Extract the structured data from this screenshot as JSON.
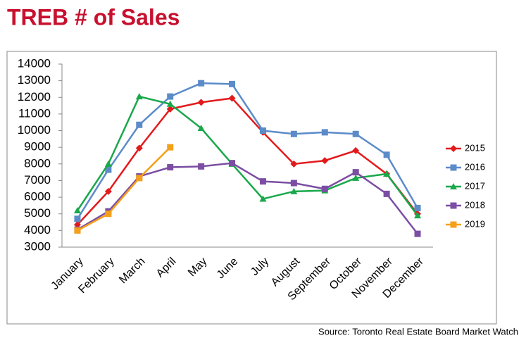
{
  "chart_data": {
    "type": "line",
    "title": "TREB # of Sales",
    "source": "Source: Toronto Real Estate Board Market Watch",
    "categories": [
      "January",
      "February",
      "March",
      "April",
      "May",
      "June",
      "July",
      "August",
      "September",
      "October",
      "November",
      "December"
    ],
    "series": [
      {
        "name": "2015",
        "color": "#e31a1c",
        "marker": "diamond",
        "values": [
          4350,
          6350,
          8950,
          11300,
          11700,
          11950,
          9900,
          8000,
          8200,
          8800,
          7400,
          5000
        ]
      },
      {
        "name": "2016",
        "color": "#5b8bc9",
        "marker": "square",
        "values": [
          4700,
          7650,
          10350,
          12050,
          12850,
          12800,
          10000,
          9800,
          9900,
          9800,
          8550,
          5350
        ]
      },
      {
        "name": "2017",
        "color": "#19a84b",
        "marker": "triangle",
        "values": [
          5200,
          8000,
          12050,
          11600,
          10150,
          8000,
          5900,
          6350,
          6400,
          7150,
          7400,
          4900
        ]
      },
      {
        "name": "2018",
        "color": "#7b4ea3",
        "marker": "square",
        "values": [
          4050,
          5150,
          7250,
          7800,
          7850,
          8050,
          6950,
          6850,
          6500,
          7500,
          6200,
          3800
        ]
      },
      {
        "name": "2019",
        "color": "#f5a01a",
        "marker": "square",
        "values": [
          4000,
          5000,
          7150,
          9000,
          null,
          null,
          null,
          null,
          null,
          null,
          null,
          null
        ]
      }
    ],
    "ylim": [
      3000,
      14000
    ],
    "yticks": [
      3000,
      4000,
      5000,
      6000,
      7000,
      8000,
      9000,
      10000,
      11000,
      12000,
      13000,
      14000
    ],
    "grid": false,
    "legend": "right"
  }
}
